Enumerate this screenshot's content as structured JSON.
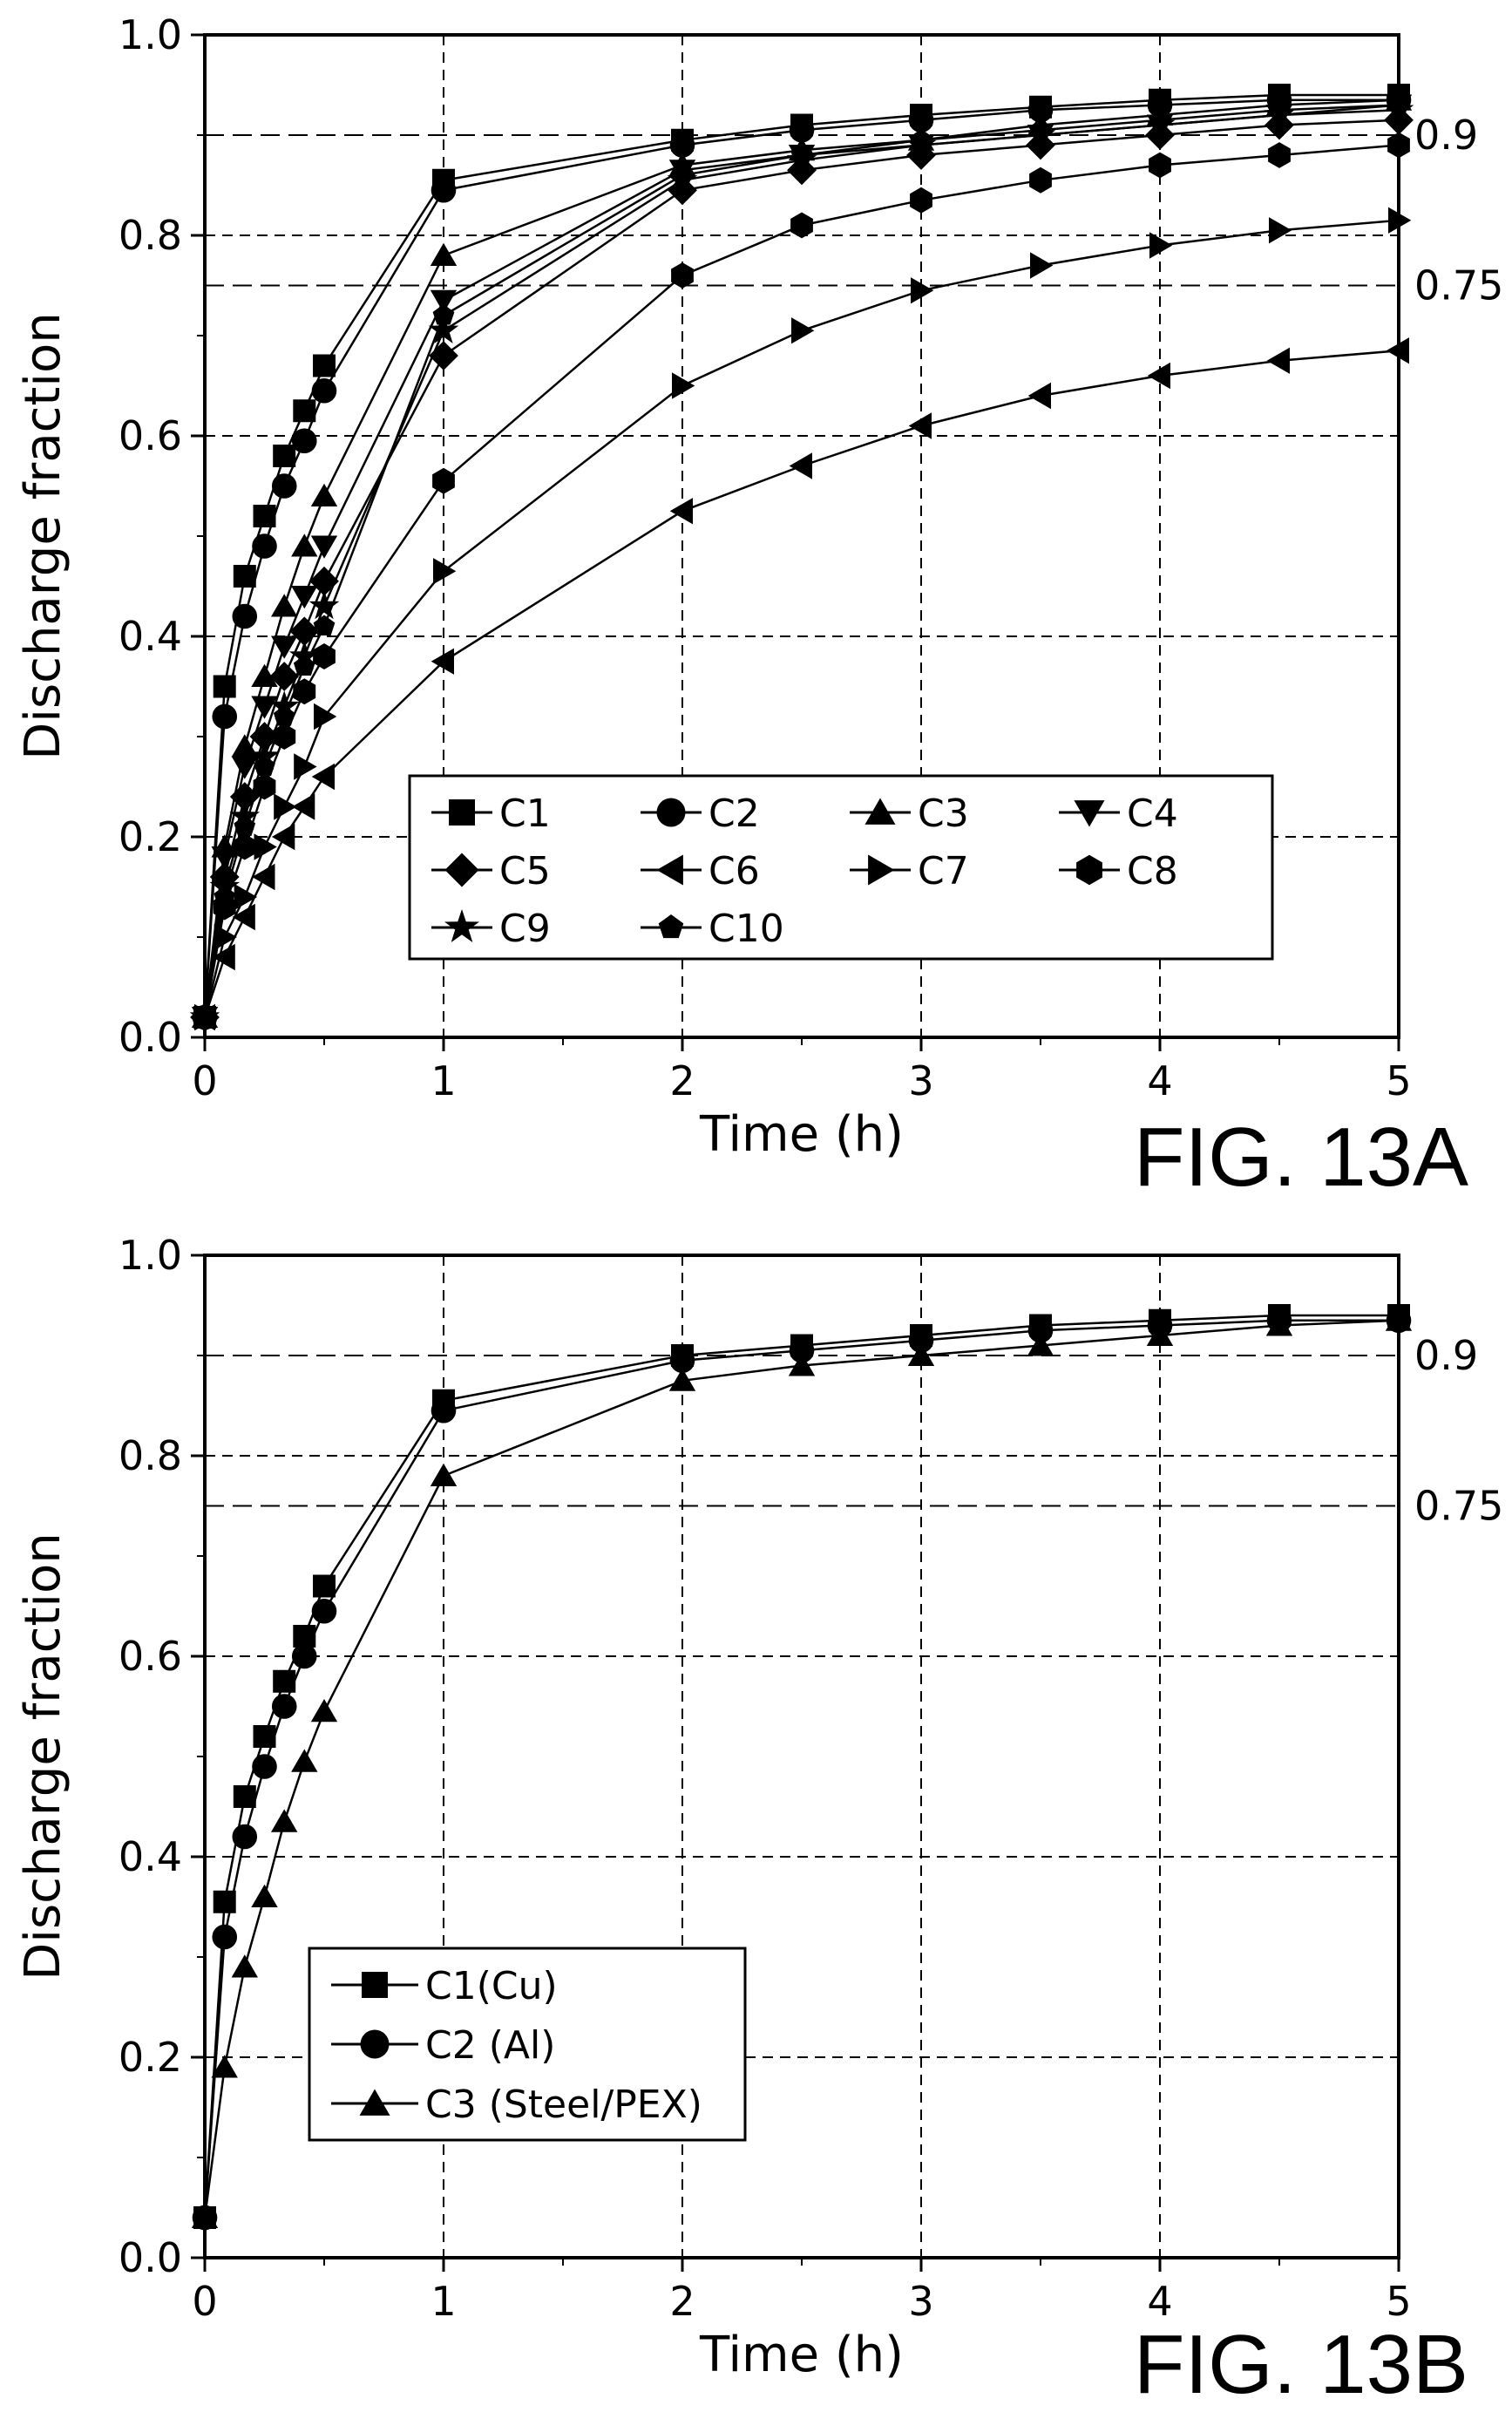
{
  "chart_data": [
    {
      "id": "fig13a",
      "type": "line",
      "figure_label": "FIG. 13A",
      "xlabel": "Time (h)",
      "ylabel": "Discharge fraction",
      "xlim": [
        0,
        5
      ],
      "ylim": [
        0,
        1.0
      ],
      "xticks": [
        "0",
        "1",
        "2",
        "3",
        "4",
        "5"
      ],
      "yticks": [
        "0.0",
        "0.2",
        "0.4",
        "0.6",
        "0.8",
        "1.0"
      ],
      "reference_lines": [
        {
          "y": 0.9,
          "label": "0.9"
        },
        {
          "y": 0.75,
          "label": "0.75"
        }
      ],
      "grid": true,
      "legend_position": "lower-center",
      "legend_columns": 4,
      "series": [
        {
          "name": "C1",
          "marker": "square",
          "x": [
            0,
            0.083,
            0.167,
            0.25,
            0.333,
            0.417,
            0.5,
            1,
            2,
            2.5,
            3,
            3.5,
            4,
            4.5,
            5
          ],
          "y": [
            0.02,
            0.35,
            0.46,
            0.52,
            0.58,
            0.625,
            0.67,
            0.855,
            0.895,
            0.91,
            0.92,
            0.928,
            0.935,
            0.94,
            0.94
          ]
        },
        {
          "name": "C2",
          "marker": "circle",
          "x": [
            0,
            0.083,
            0.167,
            0.25,
            0.333,
            0.417,
            0.5,
            1,
            2,
            2.5,
            3,
            3.5,
            4,
            4.5,
            5
          ],
          "y": [
            0.02,
            0.32,
            0.42,
            0.49,
            0.55,
            0.595,
            0.645,
            0.845,
            0.89,
            0.905,
            0.915,
            0.925,
            0.93,
            0.935,
            0.935
          ]
        },
        {
          "name": "C3",
          "marker": "triangle-up",
          "x": [
            0,
            0.083,
            0.167,
            0.25,
            0.333,
            0.417,
            0.5,
            1,
            2,
            2.5,
            3,
            3.5,
            4,
            4.5,
            5
          ],
          "y": [
            0.02,
            0.19,
            0.29,
            0.36,
            0.43,
            0.49,
            0.54,
            0.78,
            0.87,
            0.885,
            0.895,
            0.91,
            0.92,
            0.93,
            0.935
          ]
        },
        {
          "name": "C4",
          "marker": "triangle-down",
          "x": [
            0,
            0.083,
            0.167,
            0.25,
            0.333,
            0.417,
            0.5,
            1,
            2,
            2.5,
            3,
            3.5,
            4,
            4.5,
            5
          ],
          "y": [
            0.02,
            0.18,
            0.27,
            0.33,
            0.39,
            0.44,
            0.49,
            0.735,
            0.865,
            0.88,
            0.89,
            0.9,
            0.91,
            0.92,
            0.93
          ]
        },
        {
          "name": "C5",
          "marker": "diamond",
          "x": [
            0,
            0.083,
            0.167,
            0.25,
            0.333,
            0.417,
            0.5,
            1,
            2,
            2.5,
            3,
            3.5,
            4,
            4.5,
            5
          ],
          "y": [
            0.02,
            0.16,
            0.24,
            0.3,
            0.36,
            0.405,
            0.455,
            0.68,
            0.845,
            0.865,
            0.88,
            0.89,
            0.9,
            0.91,
            0.915
          ]
        },
        {
          "name": "C6",
          "marker": "triangle-left",
          "x": [
            0,
            0.083,
            0.167,
            0.25,
            0.333,
            0.417,
            0.5,
            1,
            2,
            2.5,
            3,
            3.5,
            4,
            4.5,
            5
          ],
          "y": [
            0.02,
            0.08,
            0.12,
            0.16,
            0.2,
            0.23,
            0.26,
            0.375,
            0.525,
            0.57,
            0.61,
            0.64,
            0.66,
            0.675,
            0.685
          ]
        },
        {
          "name": "C7",
          "marker": "triangle-right",
          "x": [
            0,
            0.083,
            0.167,
            0.25,
            0.333,
            0.417,
            0.5,
            1,
            2,
            2.5,
            3,
            3.5,
            4,
            4.5,
            5
          ],
          "y": [
            0.02,
            0.1,
            0.14,
            0.19,
            0.23,
            0.27,
            0.32,
            0.465,
            0.65,
            0.705,
            0.745,
            0.77,
            0.79,
            0.805,
            0.815
          ]
        },
        {
          "name": "C8",
          "marker": "hexagon",
          "x": [
            0,
            0.083,
            0.167,
            0.25,
            0.333,
            0.417,
            0.5,
            1,
            2,
            2.5,
            3,
            3.5,
            4,
            4.5,
            5
          ],
          "y": [
            0.02,
            0.13,
            0.19,
            0.25,
            0.3,
            0.345,
            0.38,
            0.555,
            0.76,
            0.81,
            0.835,
            0.855,
            0.87,
            0.88,
            0.89
          ]
        },
        {
          "name": "C9",
          "marker": "star",
          "x": [
            0,
            0.083,
            0.167,
            0.25,
            0.333,
            0.417,
            0.5,
            1,
            2,
            2.5,
            3,
            3.5,
            4,
            4.5,
            5
          ],
          "y": [
            0.02,
            0.15,
            0.22,
            0.28,
            0.33,
            0.38,
            0.43,
            0.705,
            0.855,
            0.875,
            0.89,
            0.9,
            0.91,
            0.92,
            0.925
          ]
        },
        {
          "name": "C10",
          "marker": "pentagon",
          "x": [
            0,
            0.083,
            0.167,
            0.25,
            0.333,
            0.417,
            0.5,
            1,
            2,
            2.5,
            3,
            3.5,
            4,
            4.5,
            5
          ],
          "y": [
            0.02,
            0.14,
            0.21,
            0.27,
            0.32,
            0.37,
            0.41,
            0.72,
            0.86,
            0.88,
            0.895,
            0.905,
            0.915,
            0.925,
            0.93
          ]
        }
      ]
    },
    {
      "id": "fig13b",
      "type": "line",
      "figure_label": "FIG. 13B",
      "xlabel": "Time (h)",
      "ylabel": "Discharge fraction",
      "xlim": [
        0,
        5
      ],
      "ylim": [
        0,
        1.0
      ],
      "xticks": [
        "0",
        "1",
        "2",
        "3",
        "4",
        "5"
      ],
      "yticks": [
        "0.0",
        "0.2",
        "0.4",
        "0.6",
        "0.8",
        "1.0"
      ],
      "reference_lines": [
        {
          "y": 0.9,
          "label": "0.9"
        },
        {
          "y": 0.75,
          "label": "0.75"
        }
      ],
      "grid": true,
      "legend_position": "lower-left",
      "legend_columns": 1,
      "series": [
        {
          "name": "C1(Cu)",
          "marker": "square",
          "x": [
            0,
            0.083,
            0.167,
            0.25,
            0.333,
            0.417,
            0.5,
            1,
            2,
            2.5,
            3,
            3.5,
            4,
            4.5,
            5
          ],
          "y": [
            0.04,
            0.355,
            0.46,
            0.52,
            0.575,
            0.62,
            0.67,
            0.855,
            0.9,
            0.91,
            0.92,
            0.93,
            0.935,
            0.94,
            0.94
          ]
        },
        {
          "name": "C2 (Al)",
          "marker": "circle",
          "x": [
            0,
            0.083,
            0.167,
            0.25,
            0.333,
            0.417,
            0.5,
            1,
            2,
            2.5,
            3,
            3.5,
            4,
            4.5,
            5
          ],
          "y": [
            0.04,
            0.32,
            0.42,
            0.49,
            0.55,
            0.6,
            0.645,
            0.845,
            0.895,
            0.905,
            0.915,
            0.925,
            0.93,
            0.935,
            0.935
          ]
        },
        {
          "name": "C3 (Steel/PEX)",
          "marker": "triangle-up",
          "x": [
            0,
            0.083,
            0.167,
            0.25,
            0.333,
            0.417,
            0.5,
            1,
            2,
            2.5,
            3,
            3.5,
            4,
            4.5,
            5
          ],
          "y": [
            0.04,
            0.19,
            0.29,
            0.36,
            0.435,
            0.495,
            0.545,
            0.78,
            0.875,
            0.89,
            0.9,
            0.91,
            0.92,
            0.93,
            0.935
          ]
        }
      ]
    }
  ]
}
